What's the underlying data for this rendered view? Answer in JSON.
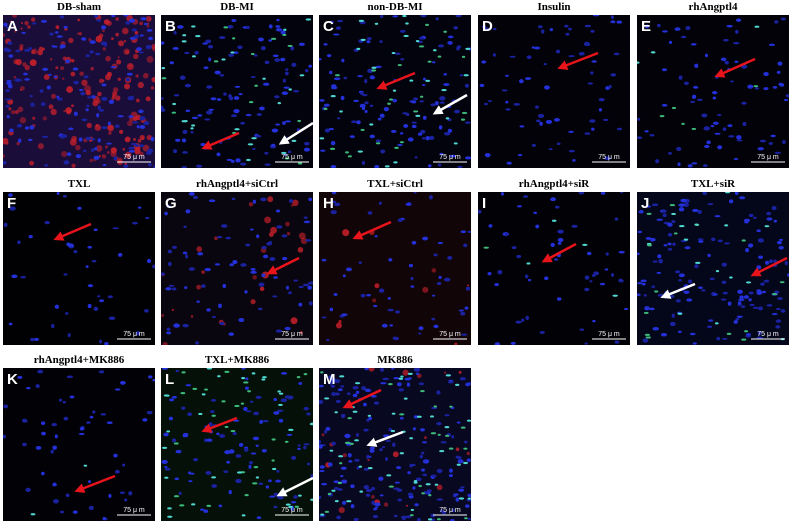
{
  "panels": [
    {
      "letter": "A",
      "title": "DB-sham",
      "scale": "75 μ m"
    },
    {
      "letter": "B",
      "title": "DB-MI",
      "scale": "75 μ m"
    },
    {
      "letter": "C",
      "title": "non-DB-MI",
      "scale": "75 μ m"
    },
    {
      "letter": "D",
      "title": "Insulin",
      "scale": "75 μ m"
    },
    {
      "letter": "E",
      "title": "rhAngptl4",
      "scale": "75 μ m"
    },
    {
      "letter": "F",
      "title": "TXL",
      "scale": "75 μ m"
    },
    {
      "letter": "G",
      "title": "rhAngptl4+siCtrl",
      "scale": "75 μ m"
    },
    {
      "letter": "H",
      "title": "TXL+siCtrl",
      "scale": "75 μ m"
    },
    {
      "letter": "I",
      "title": "rhAngptl4+siR",
      "scale": "75 μ m"
    },
    {
      "letter": "J",
      "title": "TXL+siR",
      "scale": "75 μ m"
    },
    {
      "letter": "K",
      "title": "rhAngptl4+MK886",
      "scale": "75 μ m"
    },
    {
      "letter": "L",
      "title": "TXL+MK886",
      "scale": "75 μ m"
    },
    {
      "letter": "M",
      "title": "MK886",
      "scale": "75 μ m"
    }
  ]
}
